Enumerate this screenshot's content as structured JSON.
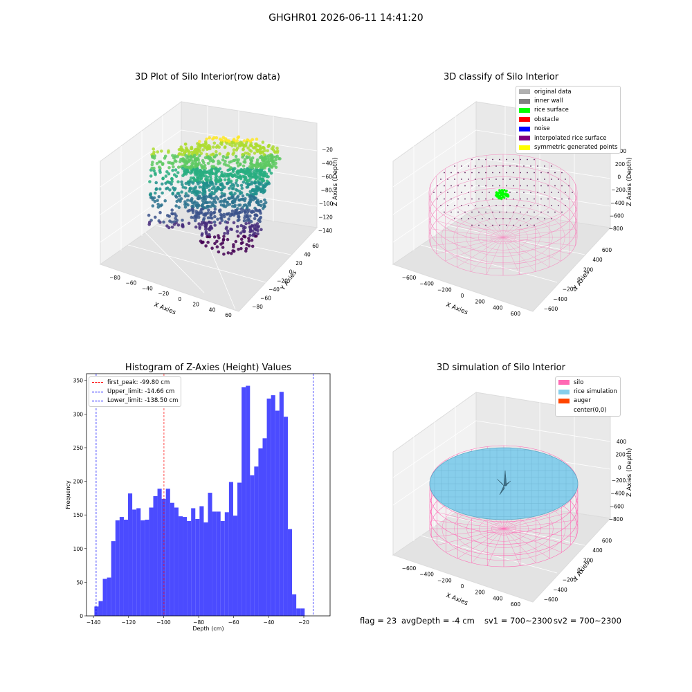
{
  "suptitle": "GHGHR01 2026-06-11 14:41:20",
  "panel1": {
    "title": "3D Plot of Silo Interior(row data)",
    "xlabel": "X Axies",
    "ylabel": "Y Axies",
    "zlabel": "Z Axies (Depth)",
    "xticks": [
      "−80",
      "−60",
      "−40",
      "−20",
      "0",
      "20",
      "40",
      "60"
    ],
    "yticks": [
      "−80",
      "−60",
      "−40",
      "−20",
      "0",
      "20",
      "40",
      "60"
    ],
    "zticks": [
      "−20",
      "−40",
      "−60",
      "−80",
      "−100",
      "−120",
      "−140"
    ]
  },
  "panel2": {
    "title": "3D classify of Silo Interior",
    "xlabel": "X Axies",
    "ylabel": "Y Axies",
    "zlabel": "Z Axies (Depth)",
    "xticks": [
      "−600",
      "−400",
      "−200",
      "0",
      "200",
      "400",
      "600"
    ],
    "yticks": [
      "−600",
      "−400",
      "−200",
      "0",
      "200",
      "400",
      "600"
    ],
    "zticks": [
      "200",
      "0",
      "−200",
      "−400",
      "−600",
      "−800"
    ],
    "zticks_top": "400",
    "legend": [
      {
        "label": "original data",
        "color": "#b0b0b0"
      },
      {
        "label": "inner wall",
        "color": "#808080"
      },
      {
        "label": "rice surface",
        "color": "#00ff00"
      },
      {
        "label": "obstacle",
        "color": "#ff0000"
      },
      {
        "label": "noise",
        "color": "#0000ff"
      },
      {
        "label": "interpolated rice surface",
        "color": "#800080"
      },
      {
        "label": "symmetric generated points",
        "color": "#ffff00"
      }
    ]
  },
  "panel3": {
    "title": "3D simulation of Silo Interior",
    "xlabel": "X Axies",
    "ylabel": "Y Axies",
    "zlabel": "Z Axies (Depth)",
    "xticks": [
      "−600",
      "−400",
      "−200",
      "0",
      "200",
      "400",
      "600"
    ],
    "yticks": [
      "−600",
      "−400",
      "−200",
      "0",
      "200",
      "400",
      "600"
    ],
    "zticks": [
      "400",
      "200",
      "0",
      "−200",
      "−400",
      "−600",
      "−800"
    ],
    "legend": [
      {
        "label": "silo",
        "color": "#ff69b4"
      },
      {
        "label": "rice simulation",
        "color": "#87ceeb"
      },
      {
        "label": "auger",
        "color": "#ff4500"
      },
      {
        "label": "center(0,0)",
        "color": "#ffffff"
      }
    ]
  },
  "status": {
    "flag": "flag = 23",
    "avg": "avgDepth = -4 cm",
    "sv1": "sv1 = 700~2300",
    "sv2": "sv2 = 700~2300"
  },
  "chart_data": {
    "type": "bar",
    "title": "Histogram of Z-Axies (Height) Values",
    "xlabel": "Depth (cm)",
    "ylabel": "Frequency",
    "xlim": [
      -144,
      -5
    ],
    "ylim": [
      0,
      360
    ],
    "xticks": [
      -140,
      -120,
      -100,
      -80,
      -60,
      -40,
      -20
    ],
    "yticks": [
      0,
      50,
      100,
      150,
      200,
      250,
      300,
      350
    ],
    "bin_start": -139.5,
    "bin_width": 2.4,
    "values": [
      14,
      22,
      55,
      57,
      111,
      142,
      147,
      143,
      182,
      158,
      160,
      142,
      143,
      161,
      178,
      189,
      174,
      189,
      168,
      161,
      148,
      147,
      141,
      160,
      144,
      163,
      139,
      183,
      155,
      155,
      141,
      154,
      199,
      149,
      198,
      340,
      342,
      209,
      222,
      249,
      264,
      323,
      328,
      305,
      333,
      296,
      129,
      32,
      11,
      11
    ],
    "bar_color": "#4b4bff",
    "vlines": [
      {
        "label": "first_peak: -99.80 cm",
        "x": -99.8,
        "color": "#ff0000"
      },
      {
        "label": "Upper_limit: -14.66 cm",
        "x": -14.66,
        "color": "#0000ff"
      },
      {
        "label": "Lower_limit: -138.50 cm",
        "x": -138.5,
        "color": "#0000ff"
      }
    ]
  }
}
